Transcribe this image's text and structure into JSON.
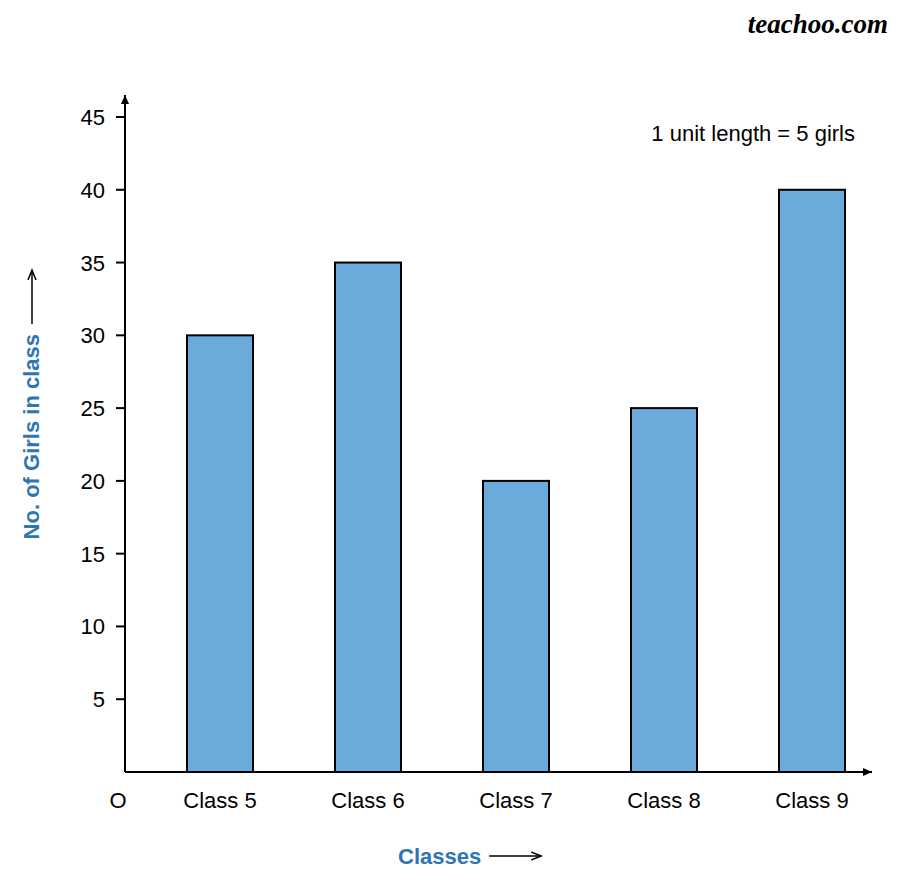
{
  "chart_data": {
    "type": "bar",
    "x_label": "Classes",
    "y_label": "No. of Girls in class",
    "categories": [
      "Class 5",
      "Class 6",
      "Class 7",
      "Class 8",
      "Class 9"
    ],
    "values": [
      30,
      35,
      20,
      25,
      40
    ],
    "color": "#6aabdc",
    "ylim": [
      0,
      45
    ],
    "yticks": [
      5,
      10,
      15,
      20,
      25,
      30,
      35,
      40,
      45
    ],
    "grid": false,
    "annotations": [
      "1 unit length = 5 girls"
    ],
    "origin_label": "O",
    "watermark": "teachoo.com"
  }
}
